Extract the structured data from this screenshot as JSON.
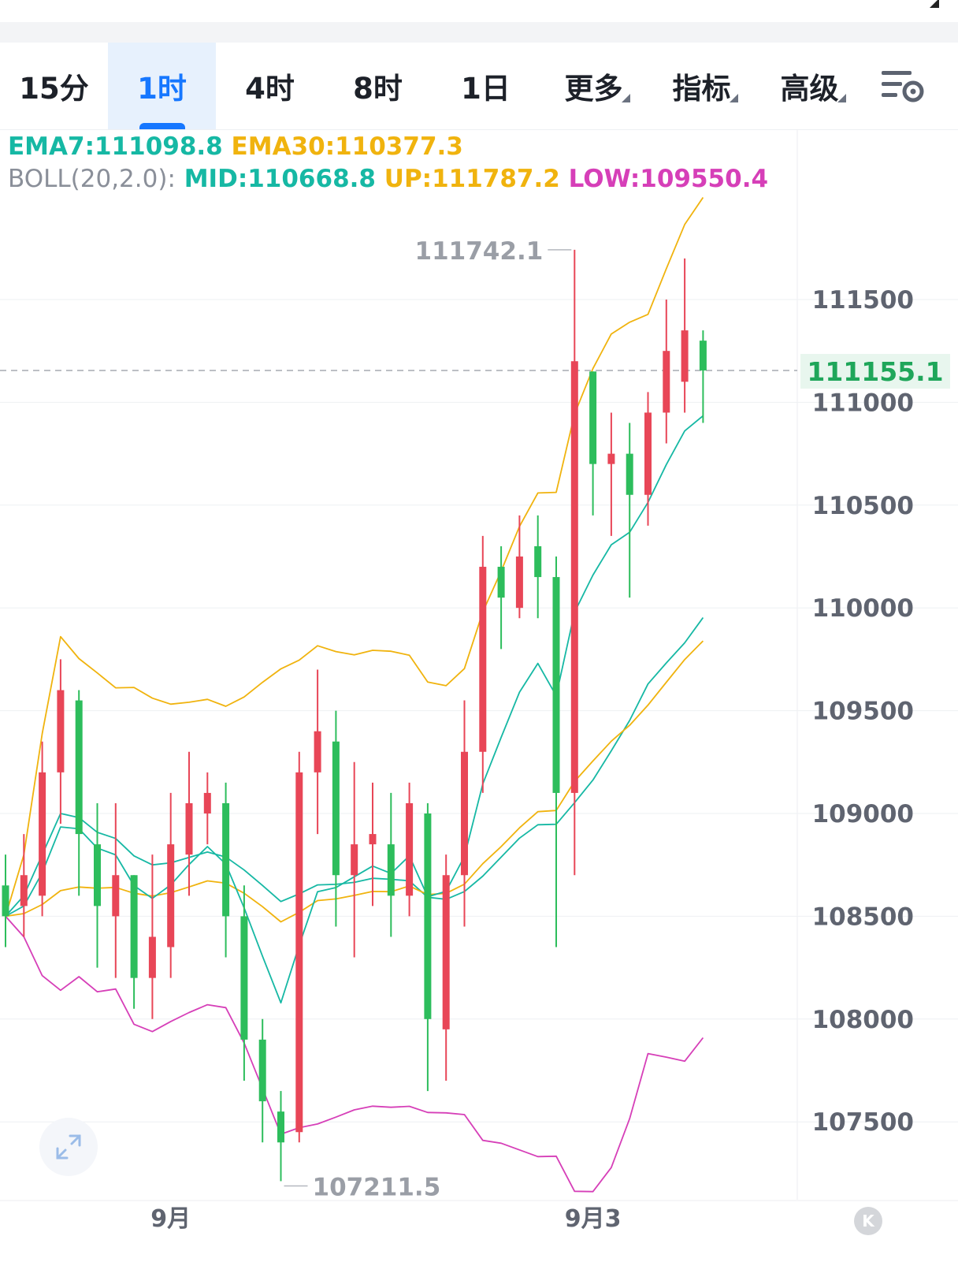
{
  "tabs": [
    {
      "label": "15分",
      "active": false,
      "dropdown": false
    },
    {
      "label": "1时",
      "active": true,
      "dropdown": false
    },
    {
      "label": "4时",
      "active": false,
      "dropdown": false
    },
    {
      "label": "8时",
      "active": false,
      "dropdown": false
    },
    {
      "label": "1日",
      "active": false,
      "dropdown": false
    },
    {
      "label": "更多",
      "active": false,
      "dropdown": true
    },
    {
      "label": "指标",
      "active": false,
      "dropdown": true
    },
    {
      "label": "高级",
      "active": false,
      "dropdown": true
    }
  ],
  "legend": {
    "ema7": "EMA7:111098.8",
    "ema30": "EMA30:110377.3",
    "boll_prefix": "BOLL(20,2.0):",
    "mid": "MID:110668.8",
    "up": "UP:111787.2",
    "low": "LOW:109550.4"
  },
  "current_price_label": "111155.1",
  "k_button_label": "K",
  "colors": {
    "up_candle": "#e84657",
    "down_candle": "#2dbd5c",
    "ema7": "#16b8a4",
    "ema30": "#f0b30e",
    "boll_mid": "#16b8a4",
    "boll_up": "#f0b30e",
    "boll_low": "#d63fb8",
    "accent": "#1677ff",
    "price_label": "#1fa65a"
  },
  "icons": {
    "settings": "chart-settings-icon",
    "expand": "expand-arrows-icon",
    "corner": "corner-triangle-icon"
  },
  "chart_data": {
    "type": "candlestick",
    "interval": "1时",
    "y_axis": {
      "ticks": [
        111500,
        111000,
        110500,
        110000,
        109500,
        109000,
        108500,
        108000,
        107500
      ],
      "range": [
        107100,
        112000
      ]
    },
    "x_axis": {
      "tick_labels": [
        {
          "label": "9月",
          "index": 9
        },
        {
          "label": "9月3",
          "index": 32
        }
      ]
    },
    "high_marker": {
      "value": "111742.1",
      "index": 31
    },
    "low_marker": {
      "value": "107211.5",
      "index": 15
    },
    "current_price": 111155.1,
    "candles": [
      {
        "o": 108650,
        "h": 108800,
        "l": 108350,
        "c": 108500
      },
      {
        "o": 108550,
        "h": 108900,
        "l": 108400,
        "c": 108700
      },
      {
        "o": 108600,
        "h": 109350,
        "l": 108500,
        "c": 109200
      },
      {
        "o": 109200,
        "h": 109750,
        "l": 108950,
        "c": 109600
      },
      {
        "o": 109550,
        "h": 109600,
        "l": 108600,
        "c": 108900
      },
      {
        "o": 108850,
        "h": 109050,
        "l": 108250,
        "c": 108550
      },
      {
        "o": 108500,
        "h": 109050,
        "l": 108200,
        "c": 108700
      },
      {
        "o": 108700,
        "h": 108700,
        "l": 108050,
        "c": 108200
      },
      {
        "o": 108200,
        "h": 108800,
        "l": 108000,
        "c": 108400
      },
      {
        "o": 108350,
        "h": 109100,
        "l": 108200,
        "c": 108850
      },
      {
        "o": 108800,
        "h": 109300,
        "l": 108600,
        "c": 109050
      },
      {
        "o": 109000,
        "h": 109200,
        "l": 108850,
        "c": 109100
      },
      {
        "o": 109050,
        "h": 109150,
        "l": 108300,
        "c": 108500
      },
      {
        "o": 108500,
        "h": 108650,
        "l": 107700,
        "c": 107900
      },
      {
        "o": 107900,
        "h": 108000,
        "l": 107400,
        "c": 107600
      },
      {
        "o": 107550,
        "h": 107650,
        "l": 107211.5,
        "c": 107400
      },
      {
        "o": 107450,
        "h": 109300,
        "l": 107400,
        "c": 109200
      },
      {
        "o": 109200,
        "h": 109700,
        "l": 108900,
        "c": 109400
      },
      {
        "o": 109350,
        "h": 109500,
        "l": 108450,
        "c": 108700
      },
      {
        "o": 108700,
        "h": 109250,
        "l": 108300,
        "c": 108850
      },
      {
        "o": 108850,
        "h": 109150,
        "l": 108550,
        "c": 108900
      },
      {
        "o": 108850,
        "h": 109100,
        "l": 108400,
        "c": 108600
      },
      {
        "o": 108600,
        "h": 109150,
        "l": 108500,
        "c": 109050
      },
      {
        "o": 109000,
        "h": 109050,
        "l": 107650,
        "c": 108000
      },
      {
        "o": 107950,
        "h": 108800,
        "l": 107700,
        "c": 108700
      },
      {
        "o": 108700,
        "h": 109550,
        "l": 108450,
        "c": 109300
      },
      {
        "o": 109300,
        "h": 110350,
        "l": 109100,
        "c": 110200
      },
      {
        "o": 110200,
        "h": 110300,
        "l": 109800,
        "c": 110050
      },
      {
        "o": 110000,
        "h": 110450,
        "l": 109950,
        "c": 110250
      },
      {
        "o": 110300,
        "h": 110450,
        "l": 109950,
        "c": 110150
      },
      {
        "o": 110150,
        "h": 110250,
        "l": 108350,
        "c": 109100
      },
      {
        "o": 109100,
        "h": 111742.1,
        "l": 108700,
        "c": 111200
      },
      {
        "o": 111150,
        "h": 111150,
        "l": 110450,
        "c": 110700
      },
      {
        "o": 110700,
        "h": 110950,
        "l": 110350,
        "c": 110750
      },
      {
        "o": 110750,
        "h": 110900,
        "l": 110050,
        "c": 110550
      },
      {
        "o": 110550,
        "h": 111050,
        "l": 110400,
        "c": 110950
      },
      {
        "o": 110950,
        "h": 111500,
        "l": 110800,
        "c": 111250
      },
      {
        "o": 111100,
        "h": 111700,
        "l": 110950,
        "c": 111350
      },
      {
        "o": 111300,
        "h": 111350,
        "l": 110900,
        "c": 111155.1
      }
    ]
  }
}
